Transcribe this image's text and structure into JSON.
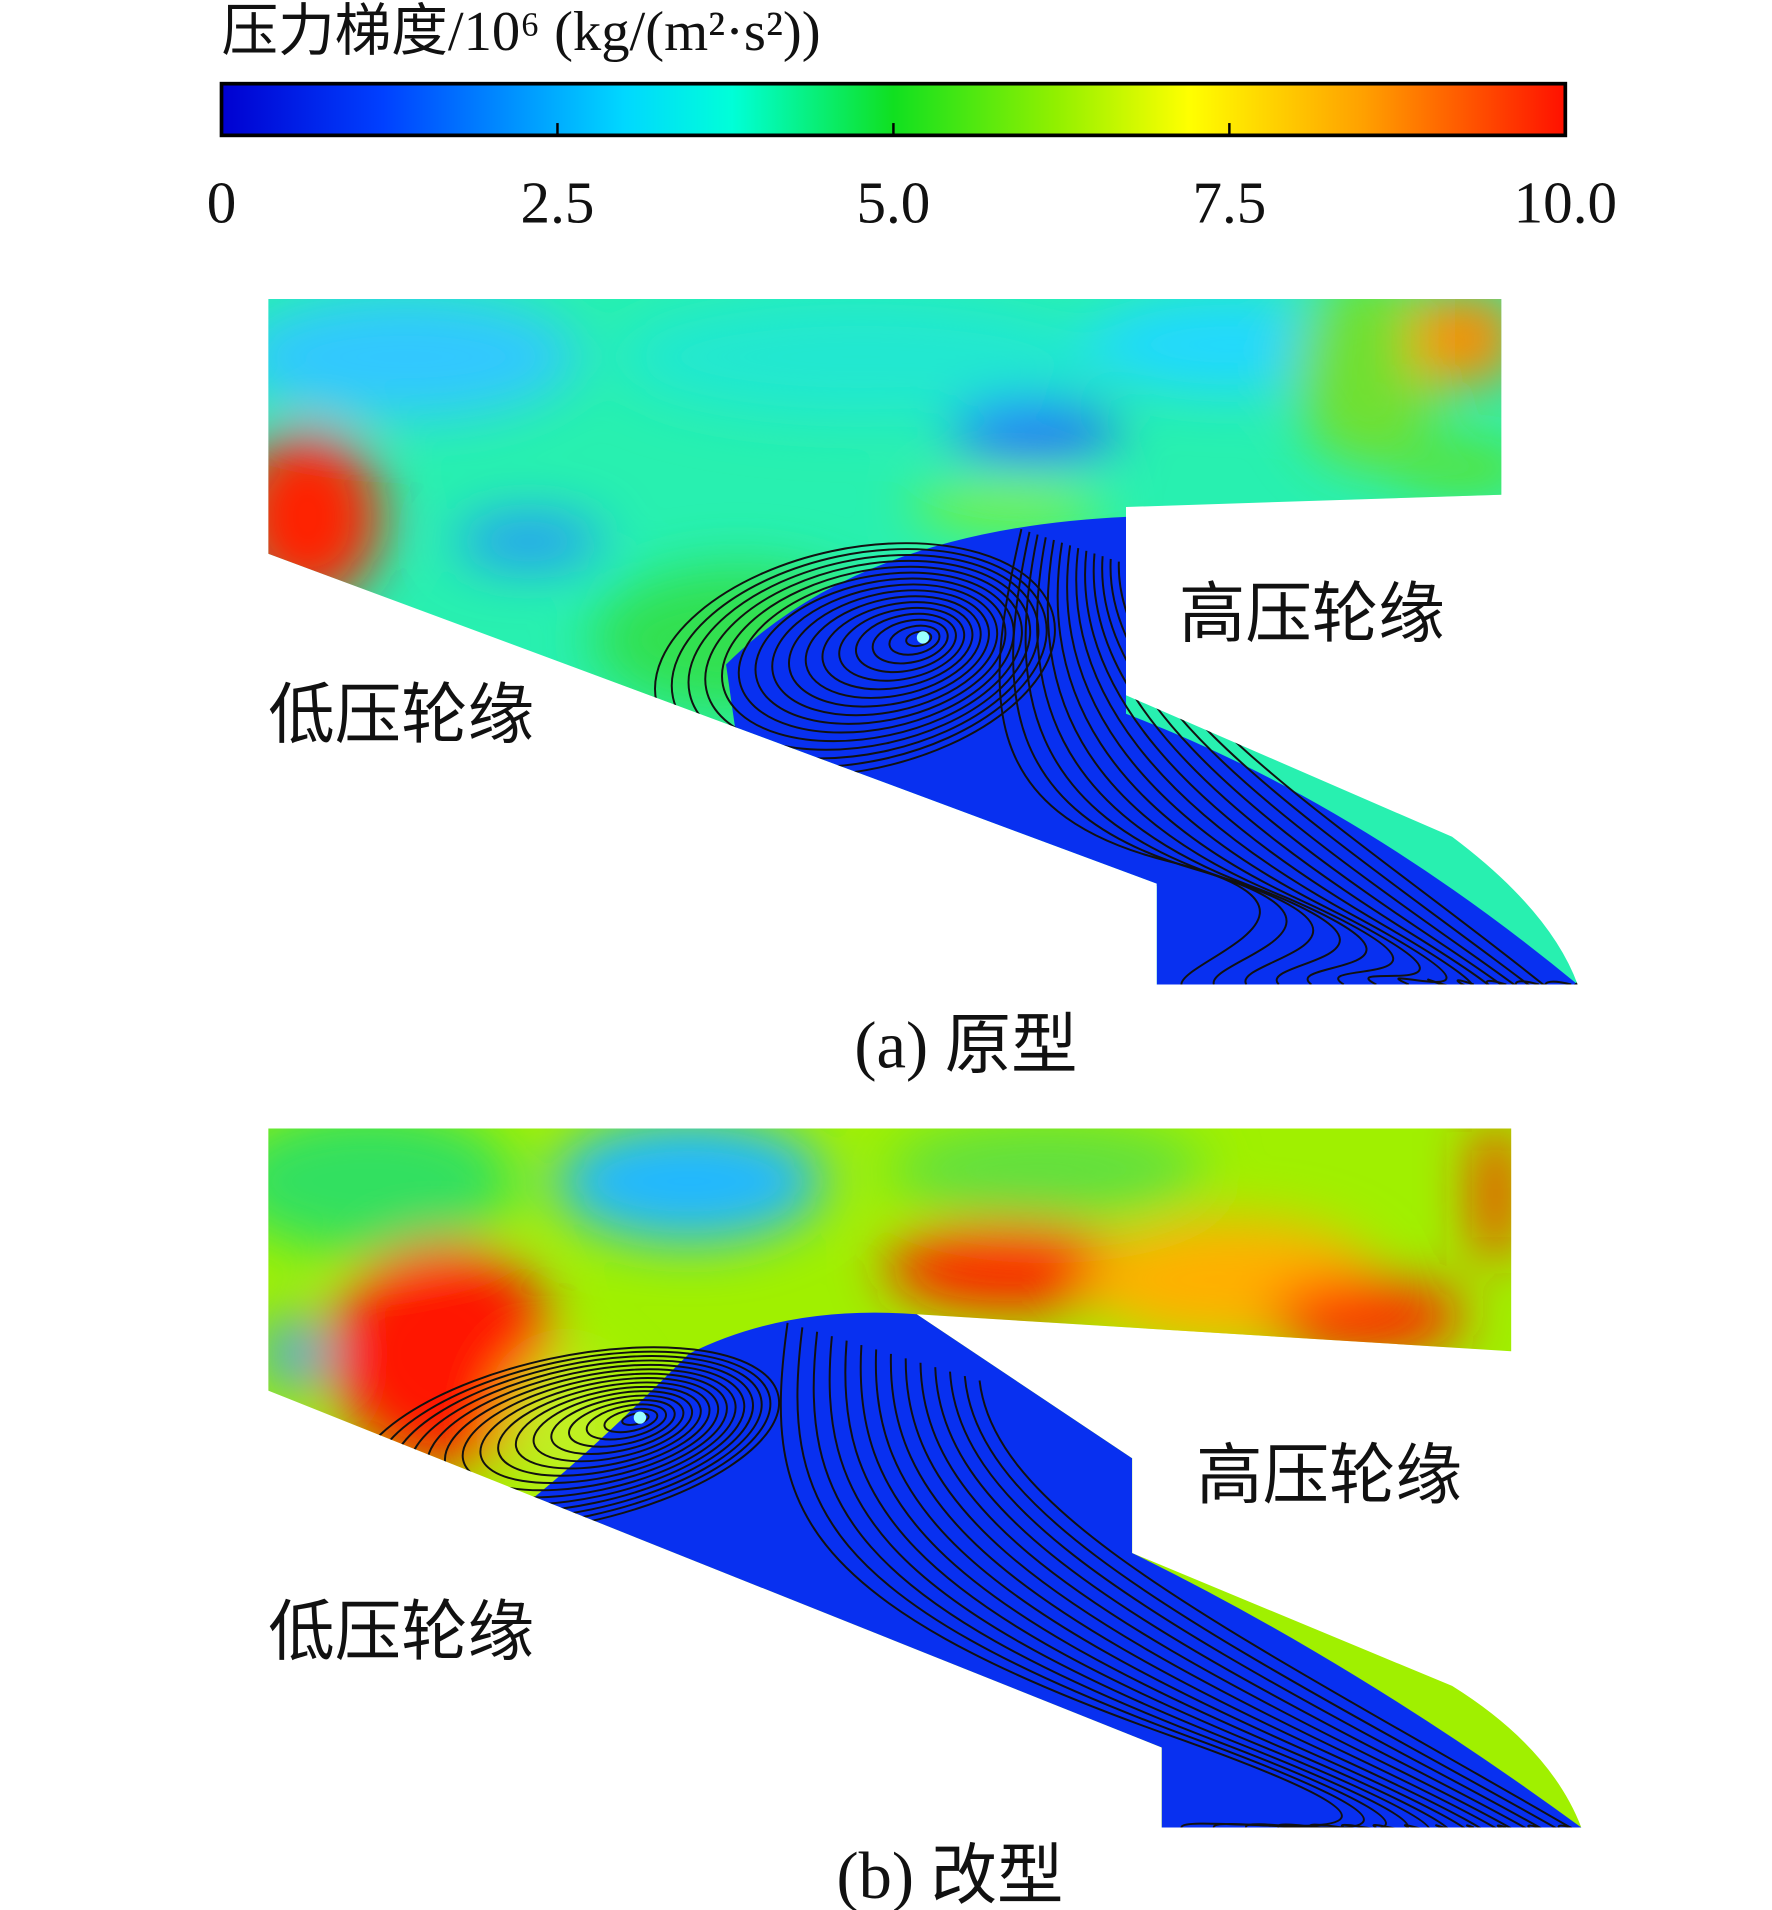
{
  "colorbar": {
    "title": "压力梯度/10⁶ (kg/(m²·s²))",
    "range": [
      0,
      10
    ],
    "ticks": [
      0,
      2.5,
      {
        "value": 5,
        "label": "5.0"
      },
      7.5,
      {
        "value": 10,
        "label": "10.0"
      }
    ]
  },
  "panels": [
    {
      "caption": "(a) 原型",
      "high_label": "高压轮缘",
      "low_label": "低压轮缘"
    },
    {
      "caption": "(b) 改型",
      "high_label": "高压轮缘",
      "low_label": "低压轮缘"
    }
  ]
}
